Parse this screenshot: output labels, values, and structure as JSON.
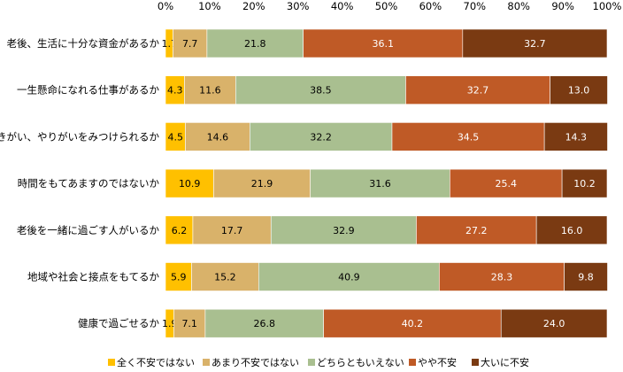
{
  "chart_data": {
    "type": "bar",
    "orientation": "horizontal",
    "stacked": "percent",
    "categories": [
      "老後、生活に十分な資金があるか",
      "一生懸命になれる仕事があるか",
      "生きがい、やりがいをみつけられるか",
      "時間をもてあますのではないか",
      "老後を一緒に過ごす人がいるか",
      "地域や社会と接点をもてるか",
      "健康で過ごせるか"
    ],
    "series": [
      {
        "name": "全く不安ではない",
        "color": "#FFC000",
        "values": [
          1.7,
          4.3,
          4.5,
          10.9,
          6.2,
          5.9,
          1.9
        ]
      },
      {
        "name": "あまり不安ではない",
        "color": "#D9B26A",
        "values": [
          7.7,
          11.6,
          14.6,
          21.9,
          17.7,
          15.2,
          7.1
        ]
      },
      {
        "name": "どちらともいえない",
        "color": "#A9BF90",
        "values": [
          21.8,
          38.5,
          32.2,
          31.6,
          32.9,
          40.9,
          26.8
        ]
      },
      {
        "name": "やや不安",
        "color": "#BF5A26",
        "values": [
          36.1,
          32.7,
          34.5,
          25.4,
          27.2,
          28.3,
          40.2
        ]
      },
      {
        "name": "大いに不安",
        "color": "#7A3A12",
        "values": [
          32.7,
          13.0,
          14.3,
          10.2,
          16.0,
          9.8,
          24.0
        ]
      }
    ],
    "x_ticks": [
      "0%",
      "10%",
      "20%",
      "30%",
      "40%",
      "50%",
      "60%",
      "70%",
      "80%",
      "90%",
      "100%"
    ],
    "xlim": [
      0,
      100
    ],
    "label_colors": [
      "#000000",
      "#000000",
      "#000000",
      "#ffffff",
      "#ffffff"
    ],
    "grid": false,
    "legend_position": "bottom"
  }
}
